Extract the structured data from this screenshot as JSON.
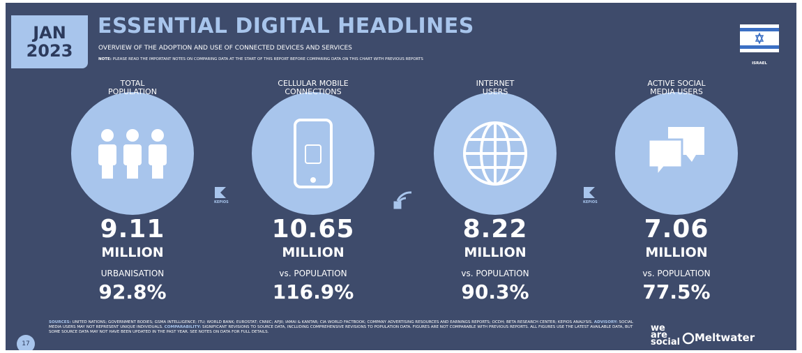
{
  "header": {
    "badge": [
      "JAN",
      "2023"
    ],
    "title": "ESSENTIAL DIGITAL HEADLINES",
    "subtitle": "OVERVIEW OF THE ADOPTION AND USE OF CONNECTED DEVICES AND SERVICES",
    "note_label": "NOTE:",
    "note": "PLEASE READ THE IMPORTANT NOTES ON COMPARING DATA AT THE START OF THIS REPORT BEFORE COMPARING DATA ON THIS CHART WITH PREVIOUS REPORTS",
    "country": "ISRAEL"
  },
  "stats": [
    {
      "label": [
        "TOTAL",
        "POPULATION"
      ],
      "value": "9.11",
      "unit": "MILLION",
      "sublabel": "URBANISATION",
      "subvalue": "92.8%"
    },
    {
      "label": [
        "CELLULAR MOBILE",
        "CONNECTIONS"
      ],
      "value": "10.65",
      "unit": "MILLION",
      "sublabel": "vs. POPULATION",
      "subvalue": "116.9%"
    },
    {
      "label": [
        "INTERNET",
        "USERS"
      ],
      "value": "8.22",
      "unit": "MILLION",
      "sublabel": "vs. POPULATION",
      "subvalue": "90.3%"
    },
    {
      "label": [
        "ACTIVE SOCIAL",
        "MEDIA USERS"
      ],
      "value": "7.06",
      "unit": "MILLION",
      "sublabel": "vs. POPULATION",
      "subvalue": "77.5%"
    }
  ],
  "sources": {
    "kepios": "KEPIOS"
  },
  "footer": {
    "page": "17",
    "segments": [
      {
        "bold": "SOURCES:",
        "text": " UNITED NATIONS; GOVERNMENT BODIES; GSMA INTELLIGENCE; ITU; WORLD BANK; EUROSTAT; CNNIC; APJII; IAMAI & KANTAR; CIA WORLD FACTBOOK; COMPANY ADVERTISING RESOURCES AND EARNINGS REPORTS; OCDH; BETA RESEARCH CENTER; KEPIOS ANALYSIS. "
      },
      {
        "bold": "ADVISORY:",
        "text": " SOCIAL MEDIA USERS MAY NOT REPRESENT UNIQUE INDIVIDUALS. "
      },
      {
        "bold": "COMPARABILITY:",
        "text": " SIGNIFICANT REVISIONS TO SOURCE DATA, INCLUDING COMPREHENSIVE REVISIONS TO POPULATION DATA. FIGURES ARE NOT COMPARABLE WITH PREVIOUS REPORTS. ALL FIGURES USE THE LATEST AVAILABLE DATA, BUT SOME SOURCE DATA MAY NOT HAVE BEEN UPDATED IN THE PAST YEAR. SEE NOTES ON DATA FOR FULL DETAILS."
      }
    ],
    "logos": [
      "we",
      "are",
      "social",
      "Meltwater"
    ]
  }
}
